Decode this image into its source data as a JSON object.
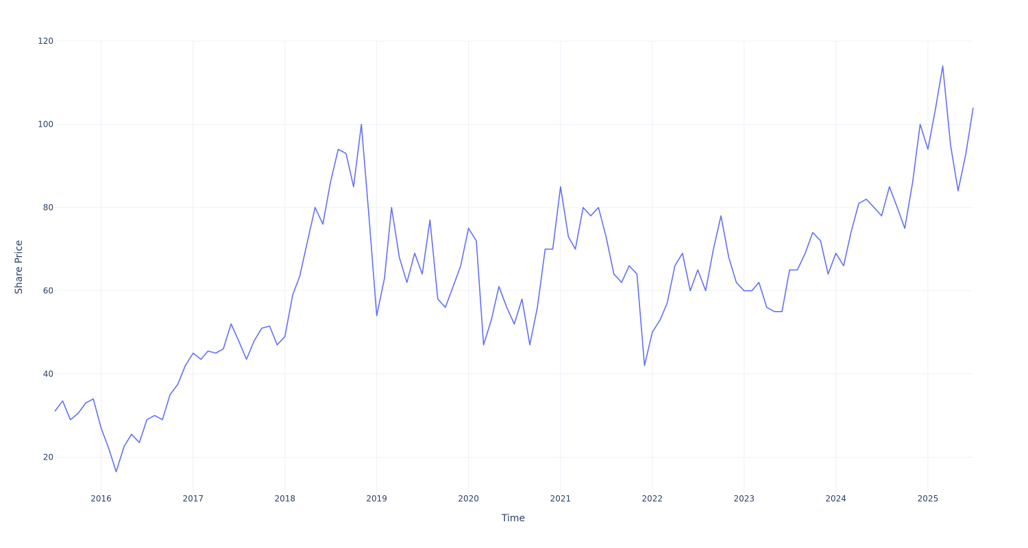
{
  "chart_data": {
    "type": "line",
    "title": "",
    "xlabel": "Time",
    "ylabel": "Share Price",
    "grid": true,
    "legend": "none",
    "xlim": [
      "2015-07-01",
      "2025-06-30"
    ],
    "ylim": [
      11,
      120
    ],
    "x_ticks": [
      "2016",
      "2017",
      "2018",
      "2019",
      "2020",
      "2021",
      "2022",
      "2023",
      "2024",
      "2025"
    ],
    "y_ticks": [
      20,
      40,
      60,
      80,
      100,
      120
    ],
    "colors": {
      "line": "#636efa",
      "grid": "#ebf0f8",
      "text": "#2a3f5f"
    },
    "series": [
      {
        "x": [
          "2015-07-01",
          "2015-08-01",
          "2015-09-01",
          "2015-10-01",
          "2015-11-01",
          "2015-12-01",
          "2016-01-01",
          "2016-02-01",
          "2016-03-01",
          "2016-04-01",
          "2016-05-01",
          "2016-06-01",
          "2016-07-01",
          "2016-08-01",
          "2016-09-01",
          "2016-10-01",
          "2016-11-01",
          "2016-12-01",
          "2017-01-01",
          "2017-02-01",
          "2017-03-01",
          "2017-04-01",
          "2017-05-01",
          "2017-06-01",
          "2017-07-01",
          "2017-08-01",
          "2017-09-01",
          "2017-10-01",
          "2017-11-01",
          "2017-12-01",
          "2018-01-01",
          "2018-02-01",
          "2018-03-01",
          "2018-04-01",
          "2018-05-01",
          "2018-06-01",
          "2018-07-01",
          "2018-08-01",
          "2018-09-01",
          "2018-10-01",
          "2018-11-01",
          "2018-12-01",
          "2019-01-01",
          "2019-02-01",
          "2019-03-01",
          "2019-04-01",
          "2019-05-01",
          "2019-06-01",
          "2019-07-01",
          "2019-08-01",
          "2019-09-01",
          "2019-10-01",
          "2019-11-01",
          "2019-12-01",
          "2020-01-01",
          "2020-02-01",
          "2020-03-01",
          "2020-04-01",
          "2020-05-01",
          "2020-06-01",
          "2020-07-01",
          "2020-08-01",
          "2020-09-01",
          "2020-10-01",
          "2020-11-01",
          "2020-12-01",
          "2021-01-01",
          "2021-02-01",
          "2021-03-01",
          "2021-04-01",
          "2021-05-01",
          "2021-06-01",
          "2021-07-01",
          "2021-08-01",
          "2021-09-01",
          "2021-10-01",
          "2021-11-01",
          "2021-12-01",
          "2022-01-01",
          "2022-02-01",
          "2022-03-01",
          "2022-04-01",
          "2022-05-01",
          "2022-06-01",
          "2022-07-01",
          "2022-08-01",
          "2022-09-01",
          "2022-10-01",
          "2022-11-01",
          "2022-12-01",
          "2023-01-01",
          "2023-02-01",
          "2023-03-01",
          "2023-04-01",
          "2023-05-01",
          "2023-06-01",
          "2023-07-01",
          "2023-08-01",
          "2023-09-01",
          "2023-10-01",
          "2023-11-01",
          "2023-12-01",
          "2024-01-01",
          "2024-02-01",
          "2024-03-01",
          "2024-04-01",
          "2024-05-01",
          "2024-06-01",
          "2024-07-01",
          "2024-08-01",
          "2024-09-01",
          "2024-10-01",
          "2024-11-01",
          "2024-12-01",
          "2025-01-01",
          "2025-02-01",
          "2025-03-01",
          "2025-04-01",
          "2025-05-01",
          "2025-06-01",
          "2025-06-30"
        ],
        "y": [
          31,
          33.5,
          29,
          30.5,
          33,
          34,
          27,
          22,
          16.5,
          22.5,
          25.5,
          23.5,
          29,
          30,
          29,
          35,
          37.5,
          42,
          45,
          43.5,
          45.5,
          45,
          46,
          52,
          48,
          43.5,
          48,
          51,
          51.5,
          47,
          49,
          59,
          63.5,
          72,
          80,
          76,
          86,
          94,
          93,
          85,
          100,
          78,
          54,
          63,
          80,
          68,
          62,
          69,
          64,
          77,
          58,
          56,
          61,
          66,
          75,
          72,
          47,
          53,
          61,
          56,
          52,
          58,
          47,
          56,
          70,
          70,
          85,
          73,
          70,
          80,
          78,
          80,
          73,
          64,
          62,
          66,
          64,
          42,
          50,
          53,
          57,
          66,
          69,
          60,
          65,
          60,
          70,
          78,
          68,
          62,
          60,
          60,
          62,
          56,
          55,
          55,
          65,
          65,
          69,
          74,
          72,
          64,
          69,
          66,
          74,
          81,
          82,
          80,
          78,
          85,
          80,
          75,
          86,
          100,
          94,
          104,
          114,
          95,
          84,
          93,
          104
        ]
      }
    ]
  }
}
